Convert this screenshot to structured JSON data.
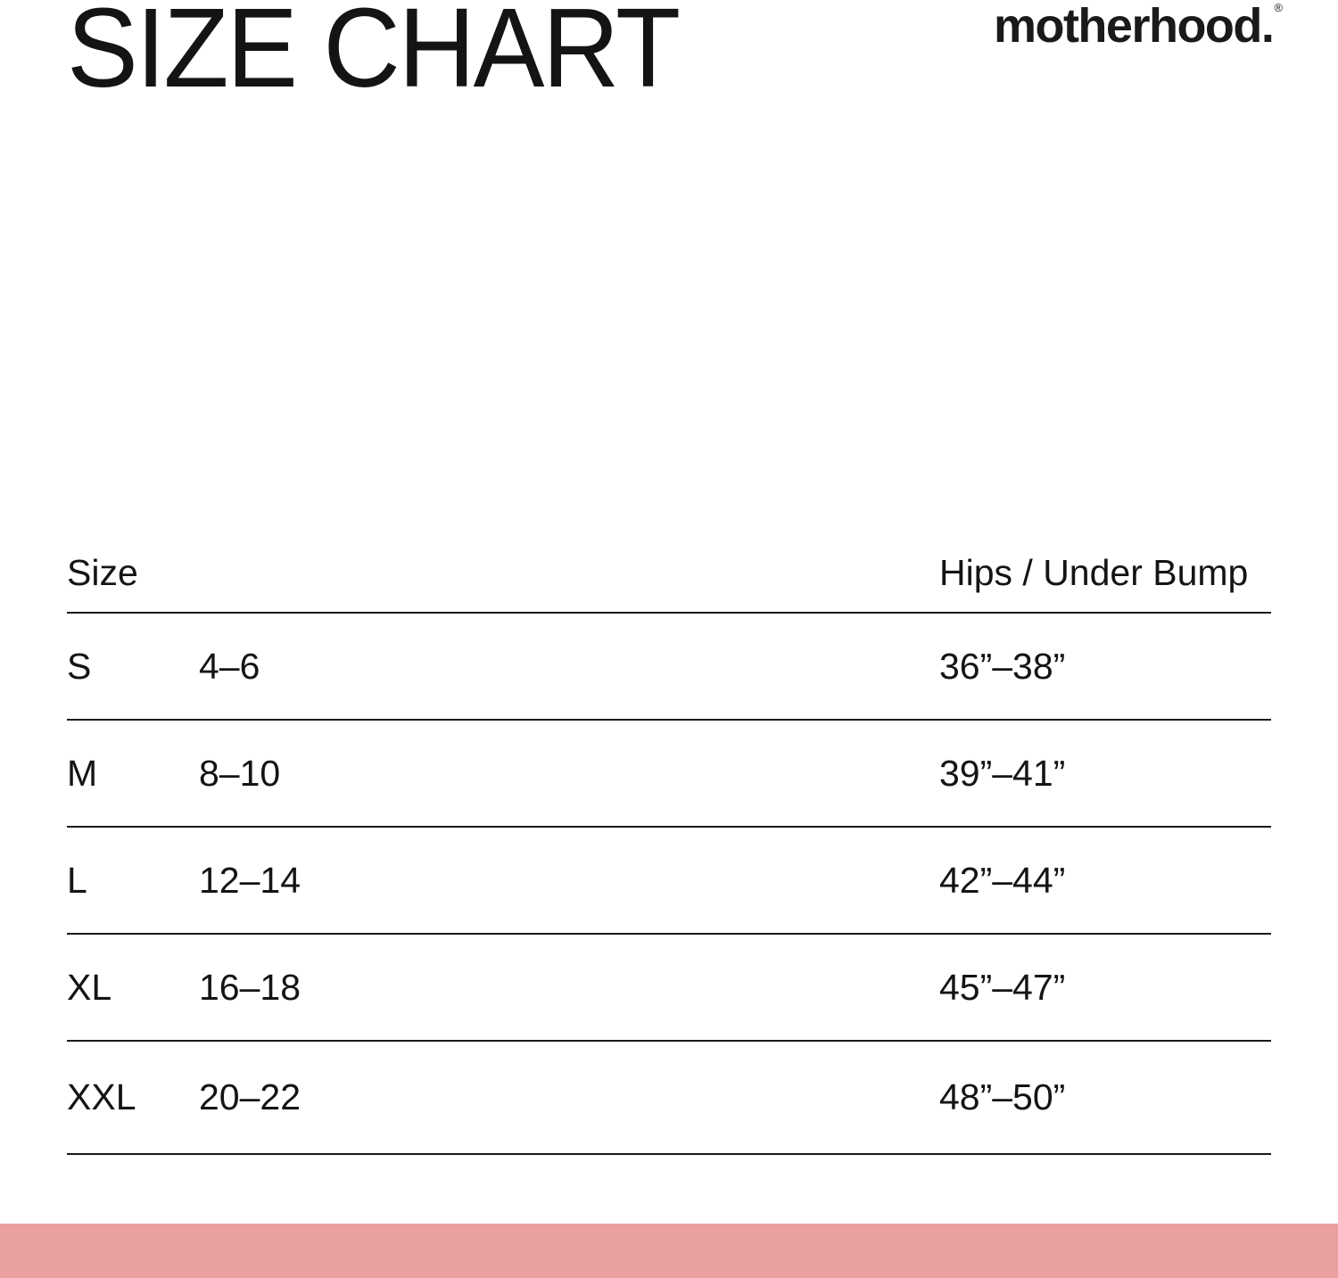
{
  "header": {
    "title": "SIZE CHART",
    "brand": {
      "wordmark": "motherhood.",
      "registered_mark": "®"
    }
  },
  "size_table": {
    "columns": {
      "size_label": "Size",
      "hips_label": "Hips / Under Bump"
    },
    "rows": [
      {
        "size": "S",
        "us_size_range": "4–6",
        "hips_under_bump": "36”–38”"
      },
      {
        "size": "M",
        "us_size_range": "8–10",
        "hips_under_bump": "39”–41”"
      },
      {
        "size": "L",
        "us_size_range": "12–14",
        "hips_under_bump": "42”–44”"
      },
      {
        "size": "XL",
        "us_size_range": "16–18",
        "hips_under_bump": "45”–47”"
      },
      {
        "size": "XXL",
        "us_size_range": "20–22",
        "hips_under_bump": "48”–50”"
      }
    ]
  },
  "footer": {
    "accent_bar_color": "#E9A09E"
  },
  "colors": {
    "text": "#141414",
    "rule": "#1A1A1A",
    "background": "#FFFFFF"
  }
}
